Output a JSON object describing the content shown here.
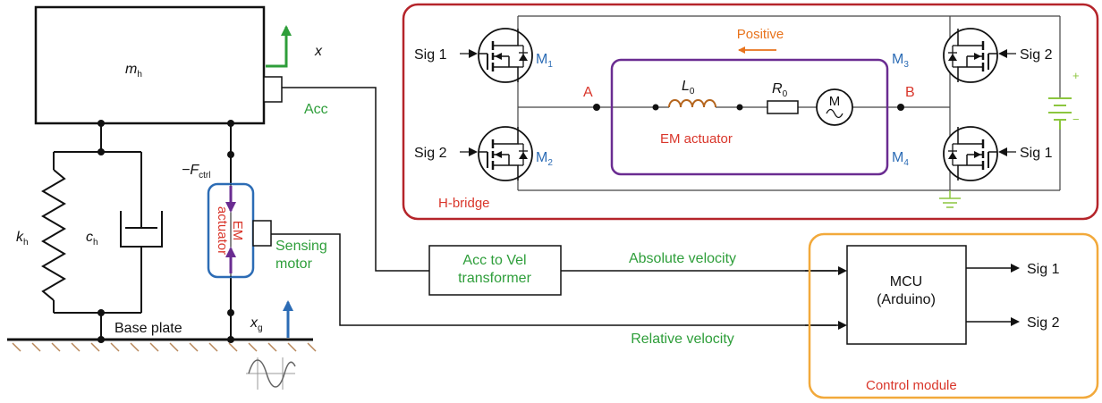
{
  "mechanical": {
    "mass_symbol": "m",
    "mass_sub": "h",
    "displacement": "x",
    "spring_symbol": "k",
    "spring_sub": "h",
    "damper_symbol": "c",
    "damper_sub": "h",
    "force_prefix": "−F",
    "force_sub": "ctrl",
    "ground_symbol": "x",
    "ground_sub": "g",
    "base_plate": "Base plate",
    "acc": "Acc",
    "em_line1": "EM",
    "em_line2": "actuator",
    "sensing_line1": "Sensing",
    "sensing_line2": "motor"
  },
  "hbridge": {
    "title": "H-bridge",
    "positive": "Positive",
    "sig1": "Sig 1",
    "sig2": "Sig 2",
    "m_symbol": "M",
    "m1_sub": "1",
    "m2_sub": "2",
    "m3_sub": "3",
    "m4_sub": "4",
    "node_a": "A",
    "node_b": "B",
    "inductor_symbol": "L",
    "inductor_sub": "0",
    "resistor_symbol": "R",
    "resistor_sub": "0",
    "motor_letter": "M",
    "em_actuator": "EM actuator",
    "battery_plus": "+",
    "battery_minus": "−"
  },
  "signals": {
    "transformer_line1": "Acc to Vel",
    "transformer_line2": "transformer",
    "absolute_velocity": "Absolute velocity",
    "relative_velocity": "Relative velocity"
  },
  "control": {
    "mcu_line1": "MCU",
    "mcu_line2": "(Arduino)",
    "out1": "Sig 1",
    "out2": "Sig 2",
    "module": "Control module"
  },
  "colors": {
    "hbridge_frame": "#b5242a",
    "em_frame": "#6a2c91",
    "control_frame": "#f2a93b",
    "label_green": "#2e9e3a",
    "label_red": "#d9362b",
    "label_blue": "#2c6cb5",
    "arrow_purple": "#6a2c91",
    "arrow_blue": "#2c6cb5",
    "battery_green": "#8cc63f"
  }
}
